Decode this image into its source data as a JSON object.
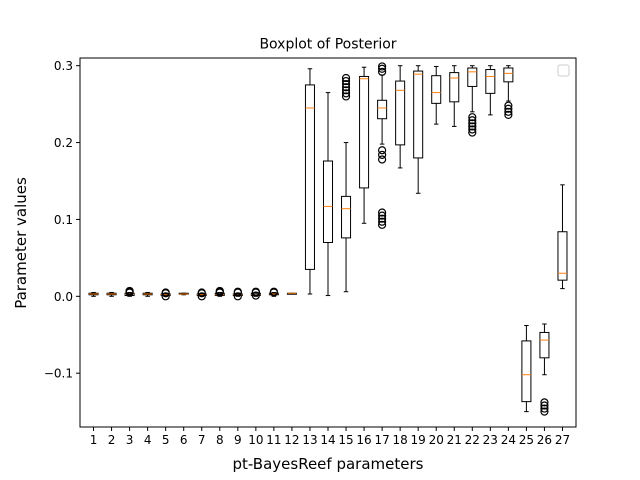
{
  "chart_data": {
    "type": "boxplot",
    "title": "Boxplot of Posterior",
    "xlabel": "pt-BayesReef parameters",
    "ylabel": "Parameter values",
    "ylim": [
      -0.17,
      0.31
    ],
    "yticks": [
      -0.1,
      0.0,
      0.1,
      0.2,
      0.3
    ],
    "ytick_labels": [
      "−0.1",
      "0.0",
      "0.1",
      "0.2",
      "0.3"
    ],
    "legend": {
      "position": "top-right",
      "entries": []
    },
    "colors": {
      "box": "#000000",
      "median": "#ff7f0e",
      "flier": "#000000"
    },
    "categories": [
      "1",
      "2",
      "3",
      "4",
      "5",
      "6",
      "7",
      "8",
      "9",
      "10",
      "11",
      "12",
      "13",
      "14",
      "15",
      "16",
      "17",
      "18",
      "19",
      "20",
      "21",
      "22",
      "23",
      "24",
      "25",
      "26",
      "27"
    ],
    "boxes": [
      {
        "label": "1",
        "whislo": 0.0,
        "q1": 0.002,
        "med": 0.003,
        "q3": 0.004,
        "whishi": 0.005,
        "fliers": []
      },
      {
        "label": "2",
        "whislo": 0.0,
        "q1": 0.002,
        "med": 0.003,
        "q3": 0.004,
        "whishi": 0.005,
        "fliers": []
      },
      {
        "label": "3",
        "whislo": 0.0,
        "q1": 0.001,
        "med": 0.003,
        "q3": 0.004,
        "whishi": 0.005,
        "fliers": [
          0.005,
          0.006,
          0.007
        ]
      },
      {
        "label": "4",
        "whislo": 0.0,
        "q1": 0.002,
        "med": 0.003,
        "q3": 0.004,
        "whishi": 0.005,
        "fliers": []
      },
      {
        "label": "5",
        "whislo": 0.0,
        "q1": 0.001,
        "med": 0.002,
        "q3": 0.003,
        "whishi": 0.004,
        "fliers": [
          0.0,
          0.004,
          0.005
        ]
      },
      {
        "label": "6",
        "whislo": 0.002,
        "q1": 0.003,
        "med": 0.003,
        "q3": 0.004,
        "whishi": 0.004,
        "fliers": []
      },
      {
        "label": "7",
        "whislo": 0.0,
        "q1": 0.001,
        "med": 0.002,
        "q3": 0.003,
        "whishi": 0.004,
        "fliers": [
          0.0,
          0.004,
          0.005
        ]
      },
      {
        "label": "8",
        "whislo": 0.0,
        "q1": 0.001,
        "med": 0.002,
        "q3": 0.004,
        "whishi": 0.005,
        "fliers": [
          0.005,
          0.006,
          0.007
        ]
      },
      {
        "label": "9",
        "whislo": 0.0,
        "q1": 0.001,
        "med": 0.002,
        "q3": 0.003,
        "whishi": 0.004,
        "fliers": [
          0.0,
          0.005,
          0.006
        ]
      },
      {
        "label": "10",
        "whislo": 0.0,
        "q1": 0.001,
        "med": 0.002,
        "q3": 0.004,
        "whishi": 0.005,
        "fliers": [
          0.001,
          0.005,
          0.006
        ]
      },
      {
        "label": "11",
        "whislo": 0.0,
        "q1": 0.002,
        "med": 0.003,
        "q3": 0.004,
        "whishi": 0.005,
        "fliers": [
          0.005,
          0.006
        ]
      },
      {
        "label": "12",
        "whislo": 0.003,
        "q1": 0.003,
        "med": 0.004,
        "q3": 0.004,
        "whishi": 0.004,
        "fliers": []
      },
      {
        "label": "13",
        "whislo": 0.003,
        "q1": 0.035,
        "med": 0.245,
        "q3": 0.275,
        "whishi": 0.296,
        "fliers": []
      },
      {
        "label": "14",
        "whislo": 0.001,
        "q1": 0.07,
        "med": 0.117,
        "q3": 0.176,
        "whishi": 0.265,
        "fliers": []
      },
      {
        "label": "15",
        "whislo": 0.006,
        "q1": 0.076,
        "med": 0.114,
        "q3": 0.13,
        "whishi": 0.2,
        "fliers": [
          0.26,
          0.264,
          0.268,
          0.272,
          0.276,
          0.28,
          0.284
        ]
      },
      {
        "label": "16",
        "whislo": 0.095,
        "q1": 0.141,
        "med": 0.283,
        "q3": 0.286,
        "whishi": 0.298,
        "fliers": []
      },
      {
        "label": "17",
        "whislo": 0.198,
        "q1": 0.231,
        "med": 0.245,
        "q3": 0.255,
        "whishi": 0.288,
        "fliers": [
          0.093,
          0.097,
          0.101,
          0.105,
          0.109,
          0.178,
          0.184,
          0.19,
          0.292,
          0.296,
          0.299
        ]
      },
      {
        "label": "18",
        "whislo": 0.167,
        "q1": 0.197,
        "med": 0.268,
        "q3": 0.28,
        "whishi": 0.3,
        "fliers": []
      },
      {
        "label": "19",
        "whislo": 0.134,
        "q1": 0.18,
        "med": 0.289,
        "q3": 0.293,
        "whishi": 0.3,
        "fliers": []
      },
      {
        "label": "20",
        "whislo": 0.224,
        "q1": 0.251,
        "med": 0.265,
        "q3": 0.287,
        "whishi": 0.299,
        "fliers": []
      },
      {
        "label": "21",
        "whislo": 0.221,
        "q1": 0.253,
        "med": 0.284,
        "q3": 0.291,
        "whishi": 0.3,
        "fliers": []
      },
      {
        "label": "22",
        "whislo": 0.24,
        "q1": 0.273,
        "med": 0.292,
        "q3": 0.297,
        "whishi": 0.3,
        "fliers": [
          0.213,
          0.217,
          0.221,
          0.225,
          0.229,
          0.233
        ]
      },
      {
        "label": "23",
        "whislo": 0.236,
        "q1": 0.264,
        "med": 0.286,
        "q3": 0.295,
        "whishi": 0.3,
        "fliers": []
      },
      {
        "label": "24",
        "whislo": 0.254,
        "q1": 0.279,
        "med": 0.29,
        "q3": 0.297,
        "whishi": 0.3,
        "fliers": [
          0.236,
          0.24,
          0.244,
          0.248
        ]
      },
      {
        "label": "25",
        "whislo": -0.15,
        "q1": -0.137,
        "med": -0.102,
        "q3": -0.058,
        "whishi": -0.038,
        "fliers": []
      },
      {
        "label": "26",
        "whislo": -0.102,
        "q1": -0.08,
        "med": -0.057,
        "q3": -0.047,
        "whishi": -0.036,
        "fliers": [
          -0.15,
          -0.146,
          -0.142,
          -0.138
        ]
      },
      {
        "label": "27",
        "whislo": 0.01,
        "q1": 0.021,
        "med": 0.03,
        "q3": 0.084,
        "whishi": 0.145,
        "fliers": []
      }
    ]
  }
}
